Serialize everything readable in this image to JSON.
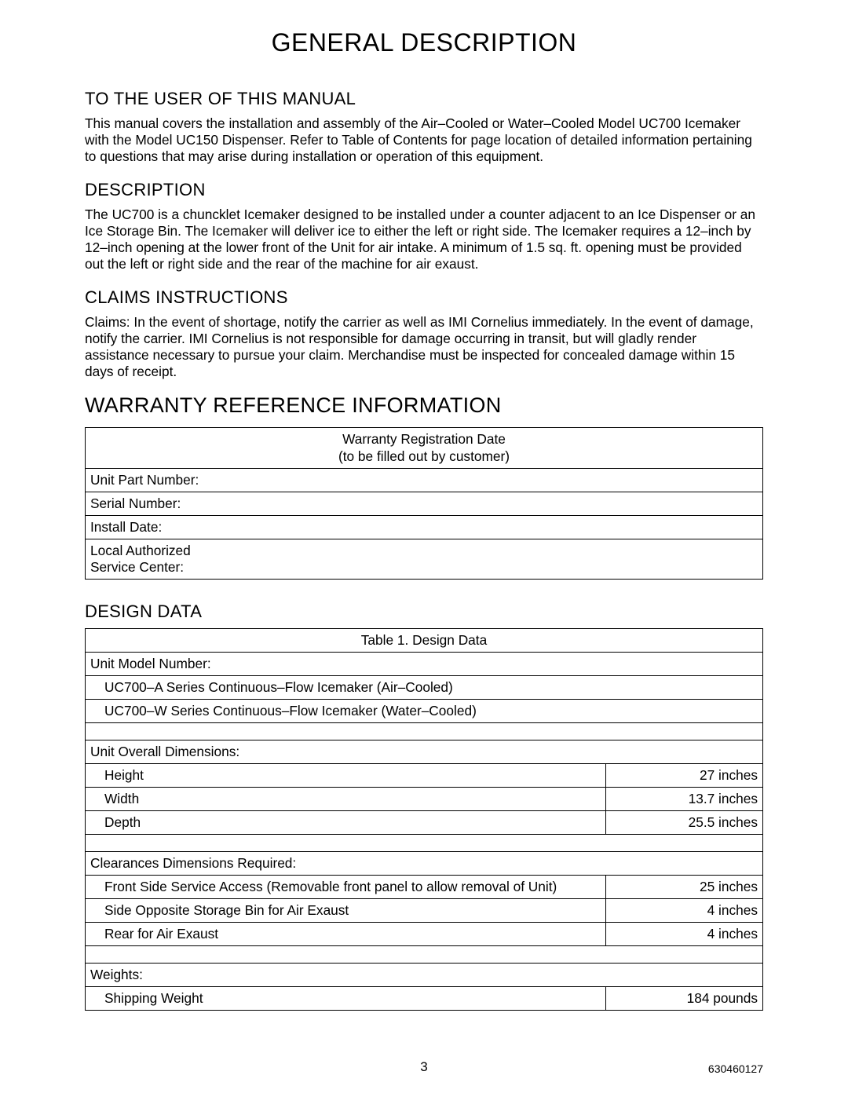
{
  "title": "GENERAL DESCRIPTION",
  "sections": {
    "to_user": {
      "heading": "TO THE USER OF THIS MANUAL",
      "body": "This manual covers the installation and assembly of the Air–Cooled or Water–Cooled Model UC700 Icemaker with the Model UC150 Dispenser. Refer to Table of Contents for page location of detailed information pertaining to  questions that may arise during installation or operation of this equipment."
    },
    "description": {
      "heading": "DESCRIPTION",
      "body": "The UC700 is a chuncklet Icemaker designed to be installed under a counter adjacent to an Ice Dispenser or an Ice Storage Bin. The Icemaker will deliver ice to either the left or right side. The Icemaker requires a 12–inch by 12–inch opening at the lower front of the Unit for air intake. A minimum of 1.5 sq. ft. opening must be provided out the left or right side and the rear of the machine for air exaust."
    },
    "claims": {
      "heading": "CLAIMS   INSTRUCTIONS",
      "body": "Claims:  In the event of shortage, notify the carrier as well as IMI Cornelius immediately. In the event of damage, notify the carrier. IMI Cornelius is not responsible for damage occurring in transit, but will gladly render assistance necessary to pursue your claim. Merchandise must be inspected for concealed damage within 15 days of receipt."
    },
    "warranty": {
      "heading": "WARRANTY REFERENCE INFORMATION",
      "table_header_line1": "Warranty Registration Date",
      "table_header_line2": "(to be filled out by customer)",
      "rows": [
        "Unit Part Number:",
        "Serial Number:",
        "Install Date:",
        "Local Authorized Service Center:"
      ]
    },
    "design": {
      "heading": "DESIGN DATA",
      "caption": "Table 1. Design Data",
      "groups": [
        {
          "label": "Unit Model Number:",
          "rows": [
            {
              "text": "UC700–A Series Continuous–Flow Icemaker (Air–Cooled)",
              "val": ""
            },
            {
              "text": "UC700–W Series Continuous–Flow Icemaker (Water–Cooled)",
              "val": ""
            }
          ]
        },
        {
          "label": "Unit Overall Dimensions:",
          "rows": [
            {
              "text": "Height",
              "val": "27 inches"
            },
            {
              "text": "Width",
              "val": "13.7 inches"
            },
            {
              "text": "Depth",
              "val": "25.5 inches"
            }
          ]
        },
        {
          "label": "Clearances Dimensions Required:",
          "rows": [
            {
              "text": "Front Side Service Access  (Removable front panel to allow removal of Unit)",
              "val": "25 inches"
            },
            {
              "text": "Side Opposite Storage Bin for Air Exaust",
              "val": "4 inches"
            },
            {
              "text": "Rear for Air Exaust",
              "val": "4 inches"
            }
          ]
        },
        {
          "label": "Weights:",
          "rows": [
            {
              "text": "Shipping Weight",
              "val": "184 pounds"
            }
          ]
        }
      ]
    }
  },
  "footer": {
    "page": "3",
    "docnum": "630460127"
  },
  "colors": {
    "text": "#000000",
    "background": "#ffffff",
    "border": "#000000"
  },
  "typography": {
    "body_fontsize_pt": 13,
    "heading_fontsize_pt": 17,
    "title_fontsize_pt": 24,
    "large_heading_fontsize_pt": 20,
    "font_family": "Arial, Helvetica, sans-serif"
  }
}
